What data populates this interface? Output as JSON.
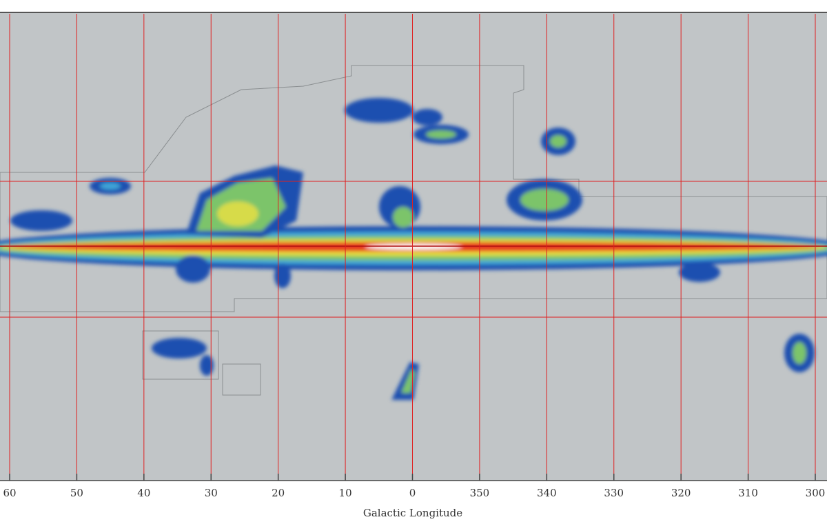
{
  "chart_data": {
    "type": "map",
    "x_label": "Galactic Longitude",
    "xlim": [
      60,
      300
    ],
    "xticks": [
      60,
      50,
      40,
      30,
      20,
      10,
      0,
      350,
      340,
      330,
      320,
      310,
      300
    ],
    "grid": true,
    "grid_color": "#e02020"
  }
}
